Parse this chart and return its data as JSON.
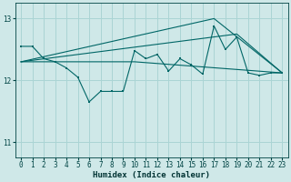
{
  "background_color": "#cfe8e8",
  "grid_color": "#aad4d4",
  "line_color": "#006666",
  "xlabel": "Humidex (Indice chaleur)",
  "xlim": [
    -0.5,
    23.5
  ],
  "ylim": [
    10.75,
    13.25
  ],
  "yticks": [
    11,
    12,
    13
  ],
  "xticks": [
    0,
    1,
    2,
    3,
    4,
    5,
    6,
    7,
    8,
    9,
    10,
    11,
    12,
    13,
    14,
    15,
    16,
    17,
    18,
    19,
    20,
    21,
    22,
    23
  ],
  "series": [
    {
      "x": [
        0,
        1,
        2,
        3,
        4,
        5,
        6,
        7,
        8,
        9,
        10,
        11,
        12,
        13,
        14,
        15,
        16,
        17,
        18,
        19,
        20,
        21,
        22,
        23
      ],
      "y": [
        12.55,
        12.55,
        12.35,
        12.3,
        12.2,
        12.05,
        11.65,
        11.82,
        11.82,
        11.82,
        12.48,
        12.35,
        12.42,
        12.15,
        12.35,
        12.25,
        12.1,
        12.88,
        12.5,
        12.7,
        12.12,
        12.08,
        12.12,
        12.12
      ]
    },
    {
      "x": [
        0,
        10,
        23
      ],
      "y": [
        12.3,
        12.3,
        12.12
      ]
    },
    {
      "x": [
        0,
        17,
        23
      ],
      "y": [
        12.3,
        13.0,
        12.12
      ]
    },
    {
      "x": [
        0,
        19,
        23
      ],
      "y": [
        12.3,
        12.75,
        12.12
      ]
    }
  ]
}
